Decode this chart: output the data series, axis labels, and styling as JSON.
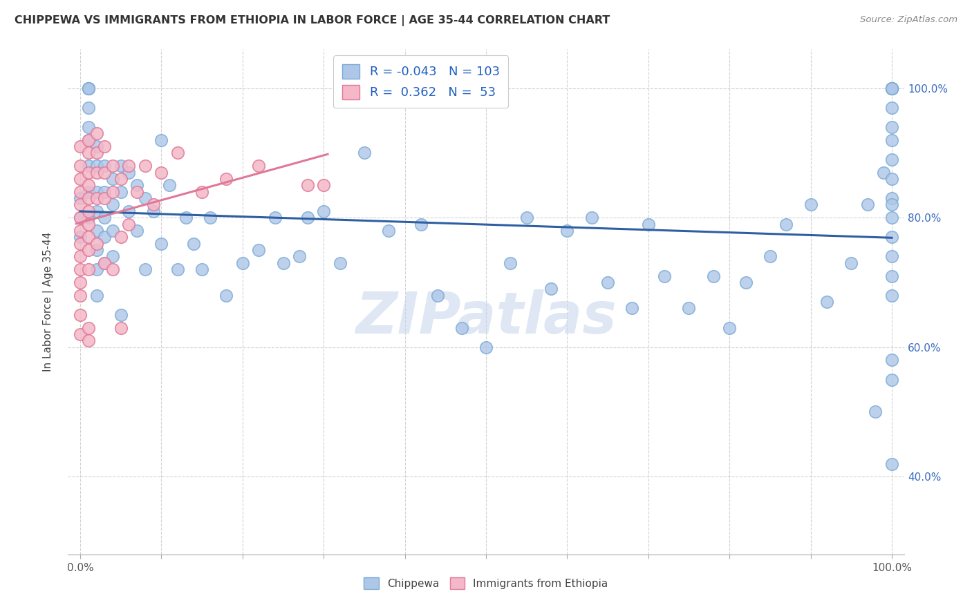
{
  "title": "CHIPPEWA VS IMMIGRANTS FROM ETHIOPIA IN LABOR FORCE | AGE 35-44 CORRELATION CHART",
  "source": "Source: ZipAtlas.com",
  "ylabel": "In Labor Force | Age 35-44",
  "legend_chippewa": "Chippewa",
  "legend_ethiopia": "Immigrants from Ethiopia",
  "R_chippewa": -0.043,
  "N_chippewa": 103,
  "R_ethiopia": 0.362,
  "N_ethiopia": 53,
  "chippewa_color": "#aec6e8",
  "chippewa_edge": "#7aaad4",
  "ethiopia_color": "#f4b8c8",
  "ethiopia_edge": "#e07898",
  "line_chippewa": "#2e5fa3",
  "line_ethiopia": "#e07898",
  "watermark_color": "#c8d8ec",
  "xlim": [
    0.0,
    1.0
  ],
  "ylim": [
    0.28,
    1.06
  ],
  "ytick_vals": [
    0.4,
    0.6,
    0.8,
    1.0
  ],
  "ytick_labels": [
    "40.0%",
    "60.0%",
    "80.0%",
    "100.0%"
  ],
  "chippewa_x": [
    0.0,
    0.0,
    0.0,
    0.01,
    0.01,
    0.01,
    0.01,
    0.01,
    0.01,
    0.01,
    0.01,
    0.01,
    0.02,
    0.02,
    0.02,
    0.02,
    0.02,
    0.02,
    0.02,
    0.02,
    0.03,
    0.03,
    0.03,
    0.03,
    0.03,
    0.04,
    0.04,
    0.04,
    0.04,
    0.05,
    0.05,
    0.05,
    0.06,
    0.06,
    0.07,
    0.07,
    0.08,
    0.08,
    0.09,
    0.1,
    0.1,
    0.11,
    0.12,
    0.13,
    0.14,
    0.15,
    0.16,
    0.18,
    0.2,
    0.22,
    0.24,
    0.25,
    0.27,
    0.28,
    0.3,
    0.32,
    0.35,
    0.38,
    0.42,
    0.44,
    0.47,
    0.5,
    0.53,
    0.55,
    0.58,
    0.6,
    0.63,
    0.65,
    0.68,
    0.7,
    0.72,
    0.75,
    0.78,
    0.8,
    0.82,
    0.85,
    0.87,
    0.9,
    0.92,
    0.95,
    0.97,
    0.98,
    0.99,
    1.0,
    1.0,
    1.0,
    1.0,
    1.0,
    1.0,
    1.0,
    1.0,
    1.0,
    1.0,
    1.0,
    1.0,
    1.0,
    1.0,
    1.0,
    1.0,
    1.0,
    1.0,
    1.0,
    1.0
  ],
  "chippewa_y": [
    0.83,
    0.8,
    0.77,
    1.0,
    1.0,
    1.0,
    0.97,
    0.94,
    0.92,
    0.88,
    0.84,
    0.8,
    0.91,
    0.88,
    0.84,
    0.81,
    0.78,
    0.75,
    0.72,
    0.68,
    0.88,
    0.84,
    0.8,
    0.77,
    0.73,
    0.86,
    0.82,
    0.78,
    0.74,
    0.88,
    0.84,
    0.65,
    0.87,
    0.81,
    0.85,
    0.78,
    0.83,
    0.72,
    0.81,
    0.92,
    0.76,
    0.85,
    0.72,
    0.8,
    0.76,
    0.72,
    0.8,
    0.68,
    0.73,
    0.75,
    0.8,
    0.73,
    0.74,
    0.8,
    0.81,
    0.73,
    0.9,
    0.78,
    0.79,
    0.68,
    0.63,
    0.6,
    0.73,
    0.8,
    0.69,
    0.78,
    0.8,
    0.7,
    0.66,
    0.79,
    0.71,
    0.66,
    0.71,
    0.63,
    0.7,
    0.74,
    0.79,
    0.82,
    0.67,
    0.73,
    0.82,
    0.5,
    0.87,
    1.0,
    1.0,
    1.0,
    1.0,
    1.0,
    0.97,
    0.94,
    0.92,
    0.89,
    0.86,
    0.83,
    0.8,
    0.77,
    0.74,
    0.71,
    0.68,
    0.82,
    0.58,
    0.55,
    0.42
  ],
  "ethiopia_x": [
    0.0,
    0.0,
    0.0,
    0.0,
    0.0,
    0.0,
    0.0,
    0.0,
    0.0,
    0.0,
    0.0,
    0.0,
    0.0,
    0.0,
    0.01,
    0.01,
    0.01,
    0.01,
    0.01,
    0.01,
    0.01,
    0.01,
    0.01,
    0.01,
    0.01,
    0.01,
    0.02,
    0.02,
    0.02,
    0.02,
    0.02,
    0.03,
    0.03,
    0.03,
    0.03,
    0.04,
    0.04,
    0.04,
    0.05,
    0.05,
    0.05,
    0.06,
    0.06,
    0.07,
    0.08,
    0.09,
    0.1,
    0.12,
    0.15,
    0.18,
    0.22,
    0.28,
    0.3
  ],
  "ethiopia_y": [
    0.91,
    0.88,
    0.86,
    0.84,
    0.82,
    0.8,
    0.78,
    0.76,
    0.74,
    0.72,
    0.7,
    0.68,
    0.65,
    0.62,
    0.92,
    0.9,
    0.87,
    0.85,
    0.83,
    0.81,
    0.79,
    0.77,
    0.75,
    0.72,
    0.63,
    0.61,
    0.93,
    0.9,
    0.87,
    0.83,
    0.76,
    0.91,
    0.87,
    0.83,
    0.73,
    0.88,
    0.84,
    0.72,
    0.86,
    0.77,
    0.63,
    0.88,
    0.79,
    0.84,
    0.88,
    0.82,
    0.87,
    0.9,
    0.84,
    0.86,
    0.88,
    0.85,
    0.85
  ]
}
